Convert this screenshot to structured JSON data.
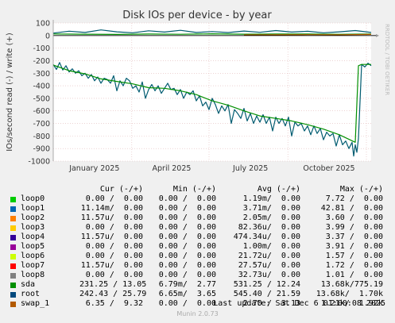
{
  "chart_data": {
    "type": "line",
    "title": "Disk IOs per device - by year",
    "ylabel": "IOs/second read (-) / write (+)",
    "side_text": "RRDTOOL / TOBI OETIKER",
    "ylim": [
      -1000,
      100
    ],
    "y_ticks": [
      100,
      0,
      -100,
      -200,
      -300,
      -400,
      -500,
      -600,
      -700,
      -800,
      -900,
      -1000
    ],
    "y_tick_labels": [
      "100",
      "0",
      "-100",
      "-200",
      "-300",
      "-400",
      "-500",
      "-600",
      "-700",
      "-800",
      "-900",
      "-1000"
    ],
    "x_ticks": [
      0.247,
      0.49,
      0.738,
      0.985
    ],
    "x_tick_labels": [
      "January 2025",
      "April 2025",
      "July 2025",
      "October 2025"
    ],
    "grid": true,
    "series": [
      {
        "name": "root",
        "color": "#005B70",
        "x": [
          0,
          0.01,
          0.02,
          0.03,
          0.04,
          0.05,
          0.06,
          0.07,
          0.08,
          0.09,
          0.1,
          0.11,
          0.12,
          0.13,
          0.14,
          0.15,
          0.16,
          0.17,
          0.18,
          0.19,
          0.2,
          0.21,
          0.22,
          0.23,
          0.24,
          0.25,
          0.26,
          0.27,
          0.28,
          0.29,
          0.3,
          0.31,
          0.32,
          0.33,
          0.34,
          0.35,
          0.36,
          0.37,
          0.38,
          0.39,
          0.4,
          0.41,
          0.42,
          0.43,
          0.44,
          0.45,
          0.46,
          0.47,
          0.48,
          0.49,
          0.5,
          0.51,
          0.52,
          0.53,
          0.54,
          0.55,
          0.56,
          0.57,
          0.58,
          0.59,
          0.6,
          0.61,
          0.62,
          0.63,
          0.64,
          0.65,
          0.66,
          0.67,
          0.68,
          0.69,
          0.7,
          0.71,
          0.72,
          0.73,
          0.74,
          0.75,
          0.76,
          0.77,
          0.78,
          0.79,
          0.8,
          0.81,
          0.82,
          0.83,
          0.84,
          0.85,
          0.86,
          0.87,
          0.88,
          0.89,
          0.9,
          0.91,
          0.92,
          0.93,
          0.94,
          0.945,
          0.95,
          0.955,
          0.96,
          0.97,
          0.98,
          0.99,
          1.0
        ],
        "values": [
          -230,
          -270,
          -215,
          -275,
          -240,
          -290,
          -265,
          -300,
          -280,
          -320,
          -300,
          -340,
          -310,
          -360,
          -330,
          -380,
          -340,
          -350,
          -380,
          -320,
          -440,
          -360,
          -400,
          -340,
          -360,
          -420,
          -400,
          -450,
          -370,
          -500,
          -430,
          -390,
          -440,
          -400,
          -460,
          -420,
          -380,
          -430,
          -420,
          -470,
          -430,
          -500,
          -450,
          -470,
          -440,
          -520,
          -480,
          -560,
          -530,
          -590,
          -500,
          -550,
          -620,
          -560,
          -600,
          -550,
          -700,
          -590,
          -620,
          -660,
          -580,
          -680,
          -620,
          -700,
          -640,
          -690,
          -630,
          -700,
          -650,
          -760,
          -650,
          -700,
          -660,
          -720,
          -650,
          -800,
          -690,
          -720,
          -700,
          -760,
          -720,
          -790,
          -720,
          -780,
          -740,
          -830,
          -770,
          -800,
          -780,
          -880,
          -790,
          -870,
          -840,
          -900,
          -850,
          -960,
          -870,
          -930,
          -820,
          -230,
          -250,
          -220,
          -240
        ]
      },
      {
        "name": "sda",
        "color": "#008F00",
        "x": [
          0,
          0.05,
          0.1,
          0.15,
          0.2,
          0.25,
          0.3,
          0.35,
          0.4,
          0.45,
          0.5,
          0.55,
          0.6,
          0.65,
          0.7,
          0.75,
          0.8,
          0.85,
          0.9,
          0.95,
          0.96,
          0.97,
          1.0
        ],
        "values": [
          -235,
          -280,
          -305,
          -345,
          -365,
          -385,
          -415,
          -420,
          -440,
          -470,
          -520,
          -555,
          -600,
          -640,
          -660,
          -680,
          -710,
          -745,
          -790,
          -850,
          -240,
          -230,
          -230
        ]
      },
      {
        "name": "sda",
        "color": "#008F00",
        "x": [
          0,
          0.1,
          0.2,
          0.3,
          0.4,
          0.5,
          0.6,
          0.7,
          0.8,
          0.9,
          1.0
        ],
        "values": [
          13,
          11,
          9,
          12,
          10,
          14,
          11,
          13,
          12,
          10,
          13
        ]
      },
      {
        "name": "root",
        "color": "#005B70",
        "x": [
          0,
          0.05,
          0.1,
          0.15,
          0.2,
          0.25,
          0.3,
          0.35,
          0.4,
          0.45,
          0.5,
          0.55,
          0.6,
          0.65,
          0.7,
          0.75,
          0.8,
          0.85,
          0.9,
          0.95,
          1.0
        ],
        "values": [
          20,
          35,
          25,
          45,
          30,
          22,
          38,
          28,
          42,
          25,
          32,
          24,
          36,
          26,
          40,
          28,
          34,
          22,
          30,
          40,
          25
        ]
      },
      {
        "name": "swap_1",
        "color": "#B85C00",
        "x": [
          0.6,
          0.7,
          0.8,
          0.9,
          1.0
        ],
        "values": [
          5,
          6,
          7,
          6,
          9
        ]
      }
    ],
    "legend": {
      "headers": {
        "cur": "Cur (-/+)",
        "min": "Min (-/+)",
        "avg": "Avg (-/+)",
        "max": "Max (-/+)"
      },
      "rows": [
        {
          "name": "loop0",
          "color": "#00CC00",
          "cur": "0.00 /  0.00",
          "min": "0.00 /  0.00",
          "avg": "1.19m/  0.00",
          "max": "7.72 /  0.00"
        },
        {
          "name": "loop1",
          "color": "#0066B3",
          "cur": "11.14m/  0.00",
          "min": "0.00 /  0.00",
          "avg": "3.71m/  0.00",
          "max": "42.81 /  0.00"
        },
        {
          "name": "loop2",
          "color": "#FF8000",
          "cur": "11.57u/  0.00",
          "min": "0.00 /  0.00",
          "avg": "2.05m/  0.00",
          "max": "3.60 /  0.00"
        },
        {
          "name": "loop3",
          "color": "#FFCC00",
          "cur": "0.00 /  0.00",
          "min": "0.00 /  0.00",
          "avg": "82.36u/  0.00",
          "max": "3.99 /  0.00"
        },
        {
          "name": "loop4",
          "color": "#330099",
          "cur": "11.57u/  0.00",
          "min": "0.00 /  0.00",
          "avg": "474.34u/  0.00",
          "max": "3.37 /  0.00"
        },
        {
          "name": "loop5",
          "color": "#990099",
          "cur": "0.00 /  0.00",
          "min": "0.00 /  0.00",
          "avg": "1.00m/  0.00",
          "max": "3.91 /  0.00"
        },
        {
          "name": "loop6",
          "color": "#CCFF00",
          "cur": "0.00 /  0.00",
          "min": "0.00 /  0.00",
          "avg": "21.72u/  0.00",
          "max": "1.57 /  0.00"
        },
        {
          "name": "loop7",
          "color": "#FF0000",
          "cur": "11.57u/  0.00",
          "min": "0.00 /  0.00",
          "avg": "27.57u/  0.00",
          "max": "1.72 /  0.00"
        },
        {
          "name": "loop8",
          "color": "#808080",
          "cur": "0.00 /  0.00",
          "min": "0.00 /  0.00",
          "avg": "32.73u/  0.00",
          "max": "1.01 /  0.00"
        },
        {
          "name": "sda",
          "color": "#008F00",
          "cur": "231.25 / 13.05",
          "min": "6.79m/  2.77",
          "avg": "531.25 / 12.24",
          "max": "13.68k/775.19"
        },
        {
          "name": "root",
          "color": "#00487D",
          "cur": "242.43 / 25.79",
          "min": "6.65m/  3.65",
          "avg": "545.40 / 21.59",
          "max": "13.68k/  1.70k"
        },
        {
          "name": "swap_1",
          "color": "#B35A00",
          "cur": "6.35 /  9.32",
          "min": "0.00 /  0.00",
          "avg": "2.70 /  3.13",
          "max": "1.21k/  1.92k"
        }
      ]
    }
  },
  "footer": {
    "last_update": "Last update:  Sat Dec  6 01:00:08 2025",
    "munin": "Munin 2.0.73"
  }
}
